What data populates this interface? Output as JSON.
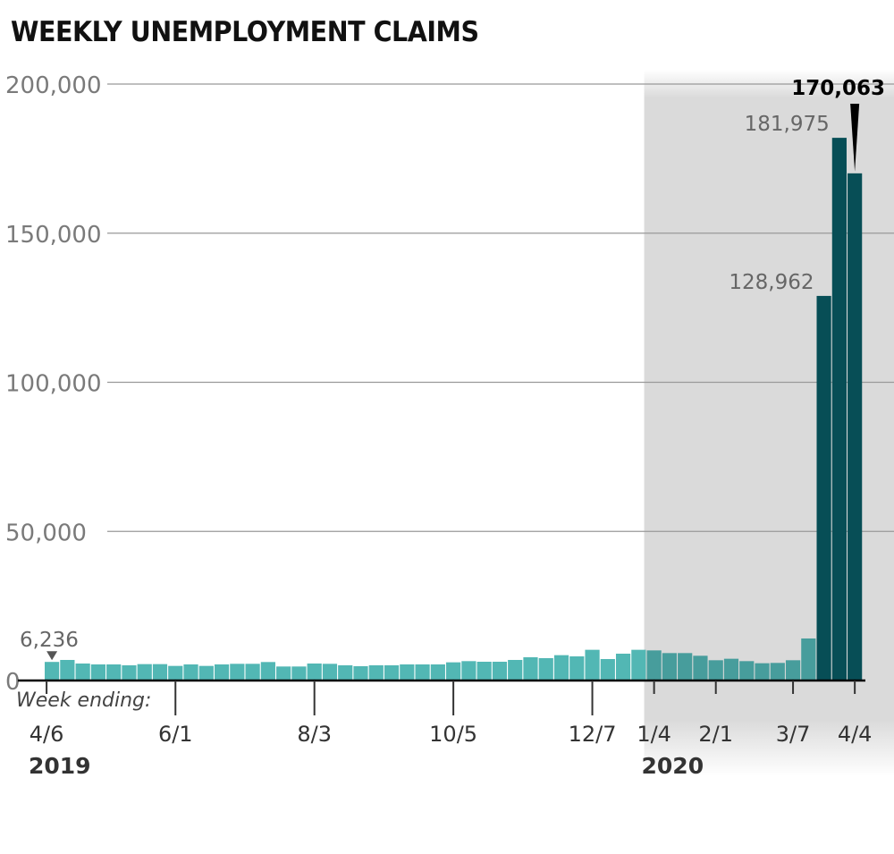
{
  "chart_data": {
    "type": "bar",
    "title": "WEEKLY UNEMPLOYMENT CLAIMS",
    "xlabel": "Week ending:",
    "ylabel": "",
    "ylim": [
      0,
      200000
    ],
    "yticks": [
      0,
      50000,
      100000,
      150000,
      200000
    ],
    "ytick_labels": [
      "0",
      "50,000",
      "100,000",
      "150,000",
      "200,000"
    ],
    "grid": true,
    "xtick_labels": [
      {
        "label": "4/6",
        "index": 0
      },
      {
        "label": "6/1",
        "index": 8
      },
      {
        "label": "8/3",
        "index": 17
      },
      {
        "label": "10/5",
        "index": 26
      },
      {
        "label": "12/7",
        "index": 35
      },
      {
        "label": "1/4",
        "index": 39
      },
      {
        "label": "2/1",
        "index": 43
      },
      {
        "label": "3/7",
        "index": 48
      },
      {
        "label": "4/4",
        "index": 52
      }
    ],
    "year_labels": [
      {
        "label": "2019",
        "index": 0
      },
      {
        "label": "2020",
        "index": 39
      }
    ],
    "shaded_from_index": 39,
    "values": [
      6236,
      6900,
      5700,
      5400,
      5400,
      5100,
      5500,
      5500,
      4900,
      5400,
      4900,
      5400,
      5600,
      5600,
      6200,
      4700,
      4700,
      5700,
      5600,
      5100,
      4800,
      5100,
      5100,
      5400,
      5400,
      5400,
      6100,
      6500,
      6300,
      6300,
      6900,
      7800,
      7500,
      8500,
      8100,
      10300,
      7200,
      9000,
      10300,
      10100,
      9200,
      9200,
      8300,
      6800,
      7300,
      6500,
      5800,
      5900,
      6800,
      14100,
      128962,
      181975,
      170063
    ],
    "annotations": [
      {
        "index": 0,
        "label": "6,236",
        "style": "normal"
      },
      {
        "index": 50,
        "label": "128,962",
        "style": "normal"
      },
      {
        "index": 51,
        "label": "181,975",
        "style": "normal"
      },
      {
        "index": 52,
        "label": "170,063",
        "style": "bold"
      }
    ],
    "colors": {
      "bar_2019": "#52b7b4",
      "bar_2020": "#479d9c",
      "bar_peak": "#074e56",
      "shade": "#dadada",
      "grid": "#999999"
    }
  }
}
